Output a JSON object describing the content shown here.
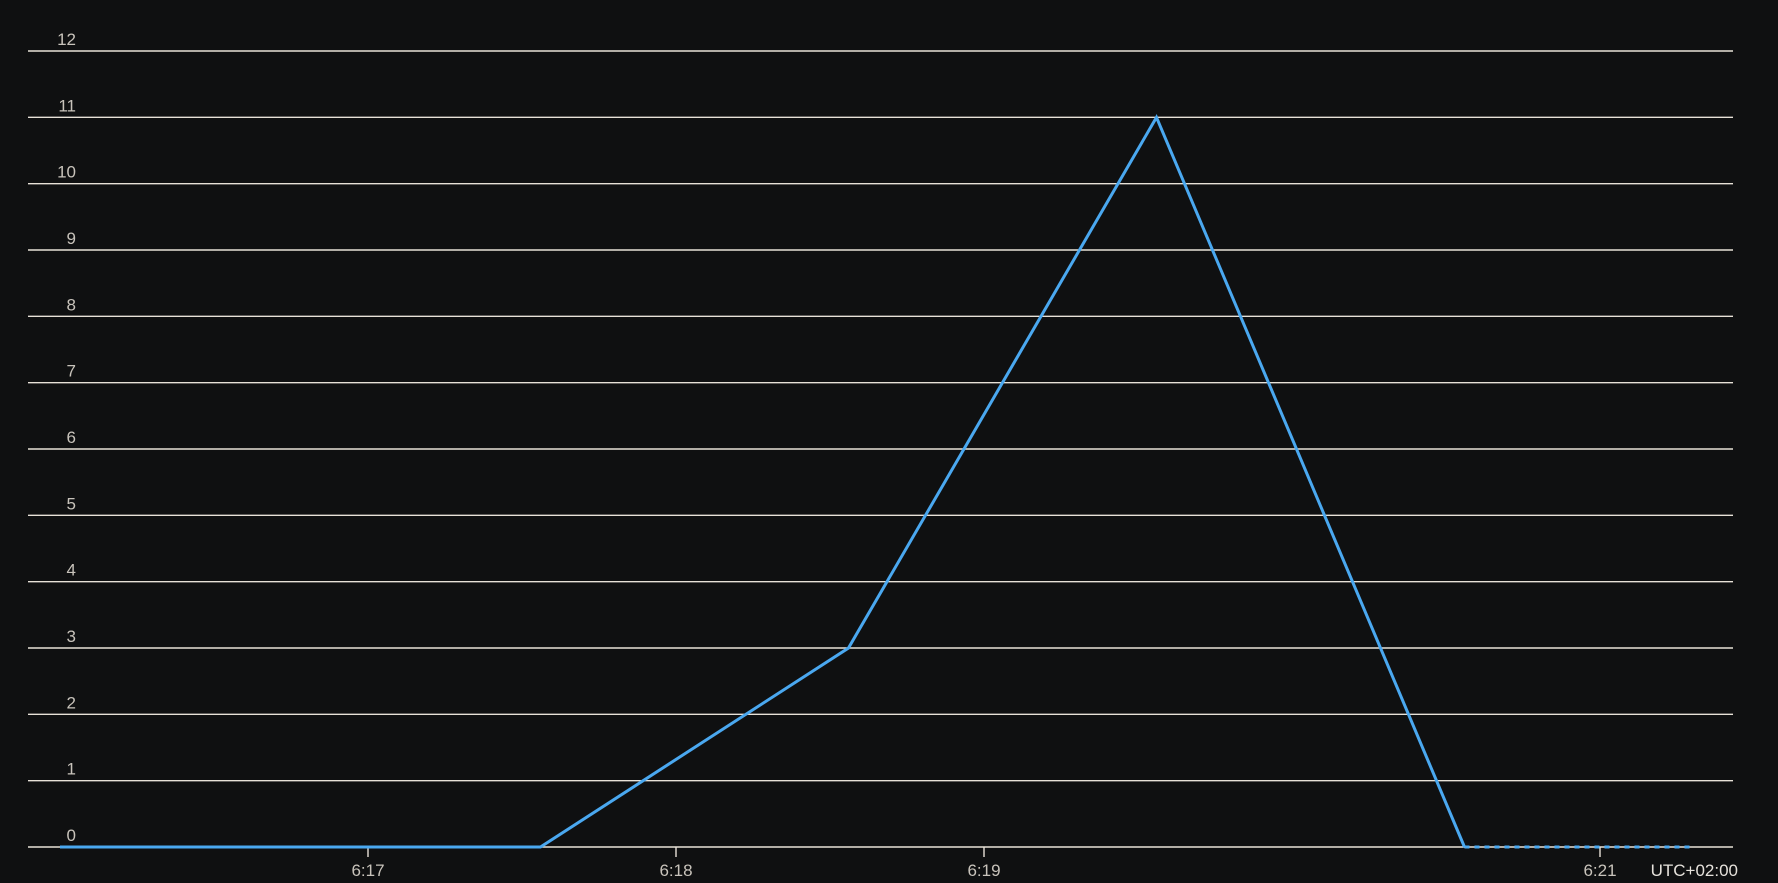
{
  "chart_data": {
    "type": "line",
    "title": "",
    "xlabel": "",
    "ylabel": "",
    "timezone_label": "UTC+02:00",
    "grid": true,
    "legend": "none",
    "y_ticks": [
      "0",
      "1",
      "2",
      "3",
      "4",
      "5",
      "6",
      "7",
      "8",
      "9",
      "10",
      "11",
      "12"
    ],
    "ylim": [
      0,
      12
    ],
    "x_tick_labels": [
      {
        "label": "6:17",
        "minute": 17
      },
      {
        "label": "6:18",
        "minute": 18
      },
      {
        "label": "6:19",
        "minute": 19
      },
      {
        "label": "6:21",
        "minute": 21
      }
    ],
    "xlim_minutes": [
      15.94,
      21.3
    ],
    "series": [
      {
        "color": "#4aa8f0",
        "points": [
          {
            "x": "6:16",
            "minute": 16.0,
            "y": 0
          },
          {
            "x": "6:17",
            "minute": 17.0,
            "y": 0
          },
          {
            "x": "6:17:30",
            "minute": 17.56,
            "y": 0
          },
          {
            "x": "6:18:30",
            "minute": 18.56,
            "y": 3
          },
          {
            "x": "6:19:30",
            "minute": 19.56,
            "y": 11
          },
          {
            "x": "6:20:30",
            "minute": 20.56,
            "y": 0
          }
        ],
        "dashed_tail": [
          {
            "x": "6:20:30",
            "minute": 20.56,
            "y": 0
          },
          {
            "x": "6:21:18",
            "minute": 21.3,
            "y": 0
          }
        ]
      }
    ]
  }
}
